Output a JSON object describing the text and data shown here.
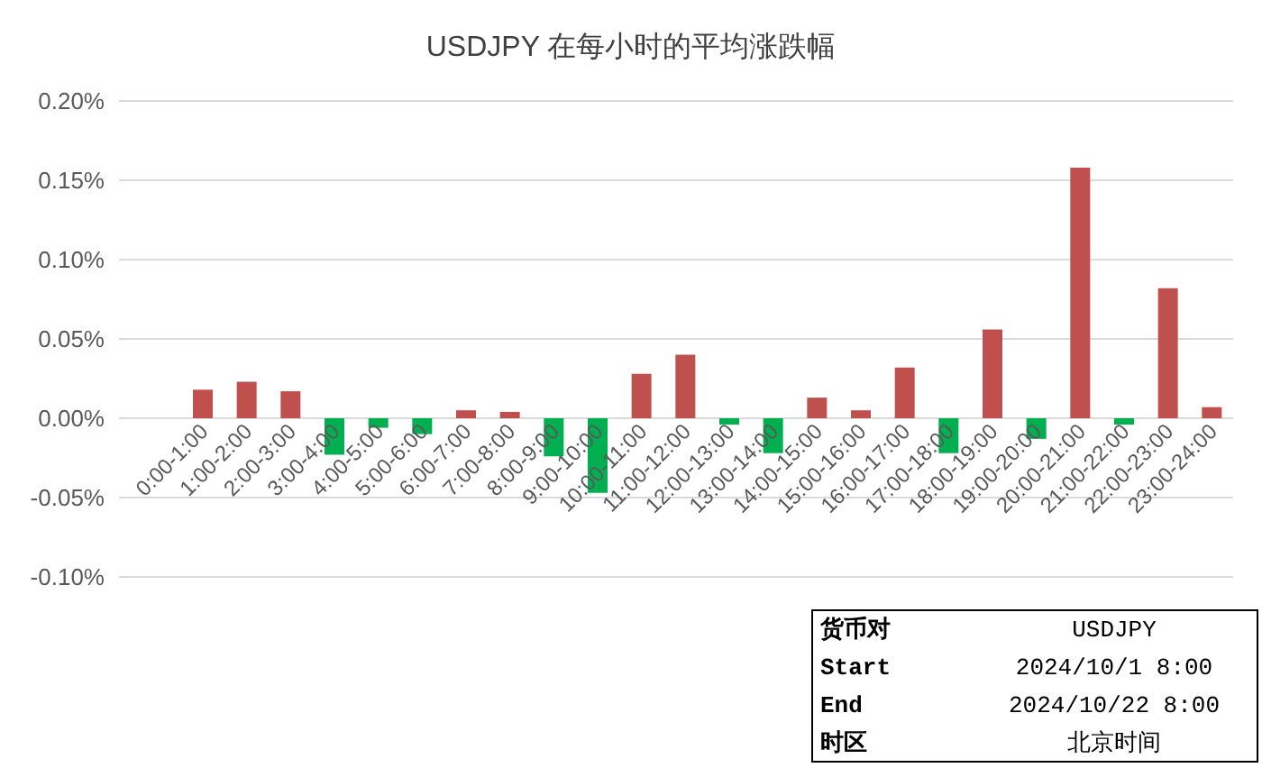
{
  "chart_data": {
    "type": "bar",
    "title": "USDJPY 在每小时的平均涨跌幅",
    "categories": [
      "0:00-1:00",
      "1:00-2:00",
      "2:00-3:00",
      "3:00-4:00",
      "4:00-5:00",
      "5:00-6:00",
      "6:00-7:00",
      "7:00-8:00",
      "8:00-9:00",
      "9:00-10:00",
      "10:00-11:00",
      "11:00-12:00",
      "12:00-13:00",
      "13:00-14:00",
      "14:00-15:00",
      "15:00-16:00",
      "16:00-17:00",
      "17:00-18:00",
      "18:00-19:00",
      "19:00-20:00",
      "20:00-21:00",
      "21:00-22:00",
      "22:00-23:00",
      "23:00-24:00"
    ],
    "values": [
      0.018,
      0.023,
      0.017,
      -0.023,
      -0.006,
      -0.01,
      0.005,
      0.004,
      -0.024,
      -0.047,
      0.028,
      0.04,
      -0.004,
      -0.022,
      0.013,
      0.005,
      0.032,
      -0.022,
      0.056,
      -0.013,
      0.158,
      -0.004,
      0.082,
      0.007
    ],
    "colors": [
      "#c0504d",
      "#c0504d",
      "#c0504d",
      "#00b050",
      "#00b050",
      "#00b050",
      "#c0504d",
      "#c0504d",
      "#00b050",
      "#00b050",
      "#c0504d",
      "#c0504d",
      "#00b050",
      "#00b050",
      "#c0504d",
      "#c0504d",
      "#c0504d",
      "#00b050",
      "#c0504d",
      "#00b050",
      "#c0504d",
      "#00b050",
      "#c0504d",
      "#c0504d"
    ],
    "ylim": [
      -0.1,
      0.2
    ],
    "yticks": [
      {
        "value": -0.1,
        "label": "-0.10%"
      },
      {
        "value": -0.05,
        "label": "-0.05%"
      },
      {
        "value": 0,
        "label": "0.00%"
      },
      {
        "value": 0.05,
        "label": "0.05%"
      },
      {
        "value": 0.1,
        "label": "0.10%"
      },
      {
        "value": 0.15,
        "label": "0.15%"
      },
      {
        "value": 0.2,
        "label": "0.20%"
      }
    ],
    "grid": "y",
    "annotations": [
      "货币对",
      "USDJPY",
      "Start",
      "2024/10/1 8:00",
      "End",
      "2024/10/22 8:00",
      "时区",
      "北京时间"
    ]
  }
}
